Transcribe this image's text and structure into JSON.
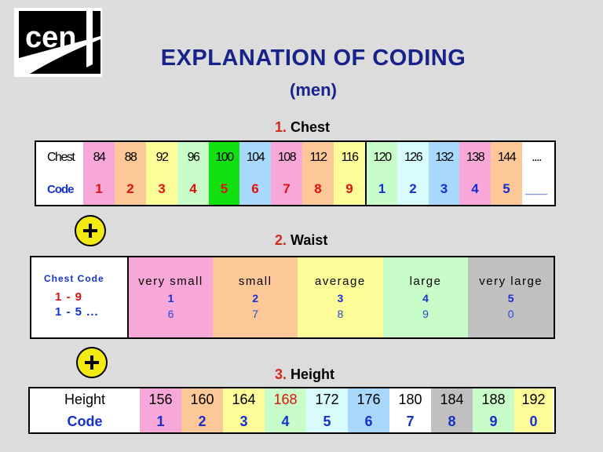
{
  "logo": {
    "text": "cen"
  },
  "header": {
    "title": "EXPLANATION OF CODING",
    "subtitle": "(men)"
  },
  "colors": {
    "pink": "#f8a8d8",
    "peach": "#fcc898",
    "yellow": "#fcfc98",
    "mint": "#c8fcc8",
    "green": "#10e010",
    "lightblue": "#a8d8fc",
    "cyan": "#d8fcfc",
    "white": "#ffffff",
    "grey": "#c0c0c0"
  },
  "chest": {
    "num": "1.",
    "title": "Chest",
    "row_label": "Chest",
    "code_label": "Code",
    "columns": [
      {
        "value": "84",
        "code": "1",
        "bg": "#f8a8d8",
        "code_color": "red"
      },
      {
        "value": "88",
        "code": "2",
        "bg": "#fcc898",
        "code_color": "red"
      },
      {
        "value": "92",
        "code": "3",
        "bg": "#fcfc98",
        "code_color": "red"
      },
      {
        "value": "96",
        "code": "4",
        "bg": "#c8fcc8",
        "code_color": "red"
      },
      {
        "value": "100",
        "code": "5",
        "bg": "#10e010",
        "code_color": "red"
      },
      {
        "value": "104",
        "code": "6",
        "bg": "#a8d8fc",
        "code_color": "red"
      },
      {
        "value": "108",
        "code": "7",
        "bg": "#f8a8d8",
        "code_color": "red"
      },
      {
        "value": "112",
        "code": "8",
        "bg": "#fcc898",
        "code_color": "red"
      },
      {
        "value": "116",
        "code": "9",
        "bg": "#fcfc98",
        "code_color": "red"
      },
      {
        "value": "120",
        "code": "1",
        "bg": "#c8fcc8",
        "code_color": "blue"
      },
      {
        "value": "126",
        "code": "2",
        "bg": "#d8fcfc",
        "code_color": "blue"
      },
      {
        "value": "132",
        "code": "3",
        "bg": "#a8d8fc",
        "code_color": "blue"
      },
      {
        "value": "138",
        "code": "4",
        "bg": "#f8a8d8",
        "code_color": "blue"
      },
      {
        "value": "144",
        "code": "5",
        "bg": "#fcc898",
        "code_color": "blue"
      },
      {
        "value": "....",
        "code": "___",
        "bg": "#ffffff",
        "code_color": "blue"
      }
    ]
  },
  "waist": {
    "num": "2.",
    "title": "Waist",
    "key_header": "Chest Code",
    "key_range1": "1 - 9",
    "key_range2": "1 - 5 ...",
    "columns": [
      {
        "name": "very small",
        "code1": "1",
        "code2": "6",
        "bg": "#f8a8d8"
      },
      {
        "name": "small",
        "code1": "2",
        "code2": "7",
        "bg": "#fcc898"
      },
      {
        "name": "average",
        "code1": "3",
        "code2": "8",
        "bg": "#fcfc98"
      },
      {
        "name": "large",
        "code1": "4",
        "code2": "9",
        "bg": "#c8fcc8"
      },
      {
        "name": "very large",
        "code1": "5",
        "code2": "0",
        "bg": "#c0c0c0"
      }
    ]
  },
  "height": {
    "num": "3.",
    "title": "Height",
    "row_label": "Height",
    "code_label": "Code",
    "columns": [
      {
        "value": "156",
        "code": "1",
        "bg": "#f8a8d8",
        "value_color": "#000000"
      },
      {
        "value": "160",
        "code": "2",
        "bg": "#fcc898",
        "value_color": "#000000"
      },
      {
        "value": "164",
        "code": "3",
        "bg": "#fcfc98",
        "value_color": "#000000"
      },
      {
        "value": "168",
        "code": "4",
        "bg": "#c8fcc8",
        "value_color": "#e01010"
      },
      {
        "value": "172",
        "code": "5",
        "bg": "#d8fcfc",
        "value_color": "#000000"
      },
      {
        "value": "176",
        "code": "6",
        "bg": "#a8d8fc",
        "value_color": "#000000"
      },
      {
        "value": "180",
        "code": "7",
        "bg": "#ffffff",
        "value_color": "#000000"
      },
      {
        "value": "184",
        "code": "8",
        "bg": "#c0c0c0",
        "value_color": "#000000"
      },
      {
        "value": "188",
        "code": "9",
        "bg": "#c8fcc8",
        "value_color": "#000000"
      },
      {
        "value": "192",
        "code": "0",
        "bg": "#fcfc98",
        "value_color": "#000000"
      }
    ]
  }
}
